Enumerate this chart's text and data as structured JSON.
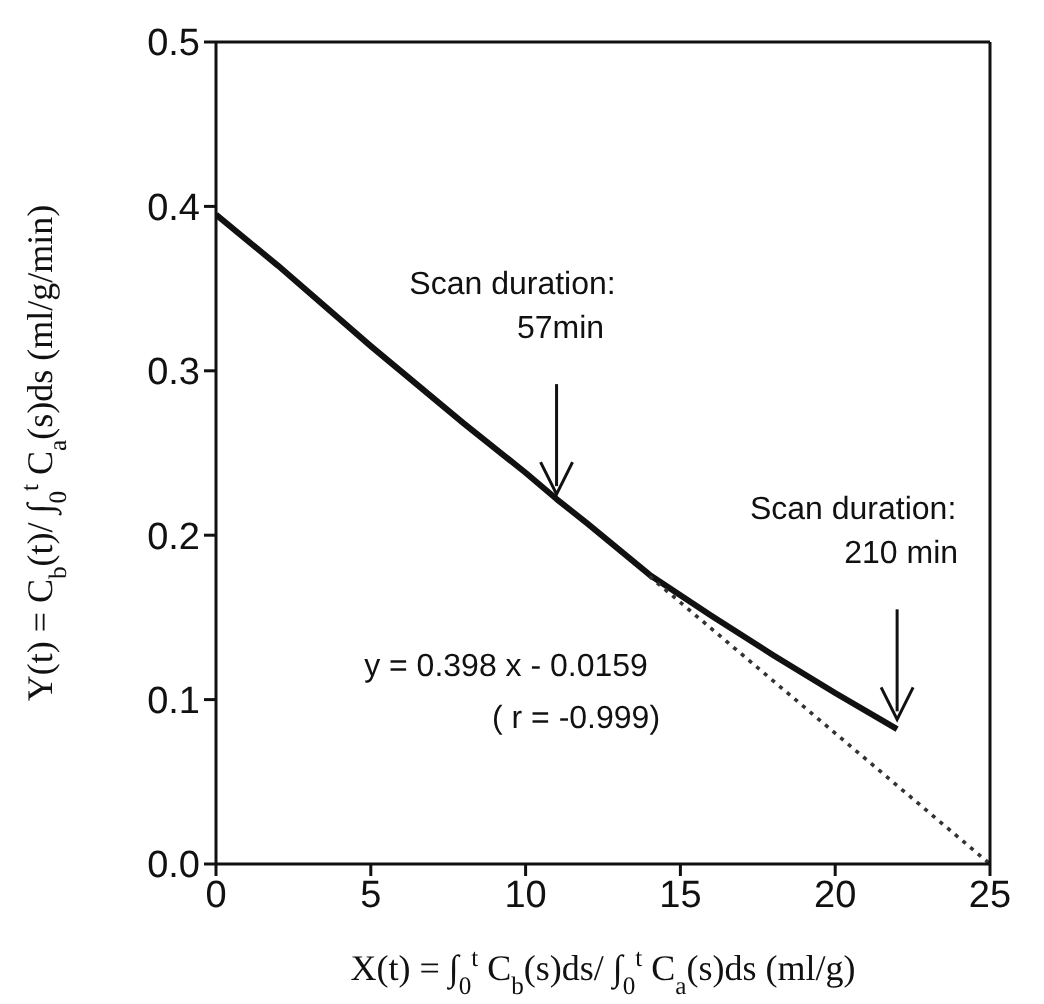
{
  "chart_data": {
    "type": "line",
    "xlabel": "X(t) = ∫$_{0}$$^{t}$ C$_{b}$(s)ds/ ∫$_{0}$$^{t}$ C$_{a}$(s)ds  (ml/g)",
    "ylabel": "Y(t) = C$_{b}$(t)/ ∫$_{0}$$^{t}$ C$_{a}$(s)ds  (ml/g/min)",
    "series": [
      {
        "color": "#111111",
        "line_style": "solid",
        "x": [
          0,
          2,
          5,
          8,
          10,
          11,
          12,
          14,
          16,
          18,
          20,
          22
        ],
        "values": [
          0.395,
          0.364,
          0.315,
          0.268,
          0.238,
          0.222,
          0.207,
          0.176,
          0.151,
          0.127,
          0.104,
          0.082
        ]
      },
      {
        "color": "#333333",
        "line_style": "dotted",
        "x": [
          14,
          25
        ],
        "values": [
          0.175,
          0.0
        ]
      }
    ],
    "xlim": [
      0,
      25
    ],
    "xticks": [
      0,
      5,
      10,
      15,
      20,
      25
    ],
    "ylim": [
      0,
      0.5
    ],
    "yticks": [
      {
        "value": 0,
        "label": "0.0"
      },
      0.1,
      0.2,
      0.3,
      0.4,
      0.5
    ],
    "marker": "none",
    "annotations": [
      {
        "text": "Scan duration:\n57min",
        "x": 11,
        "y": 0.225
      },
      {
        "text": "Scan duration:\n210 min",
        "x": 22,
        "y": 0.088
      },
      "y = 0.398 x - 0.0159",
      "( r = -0.999)"
    ]
  }
}
